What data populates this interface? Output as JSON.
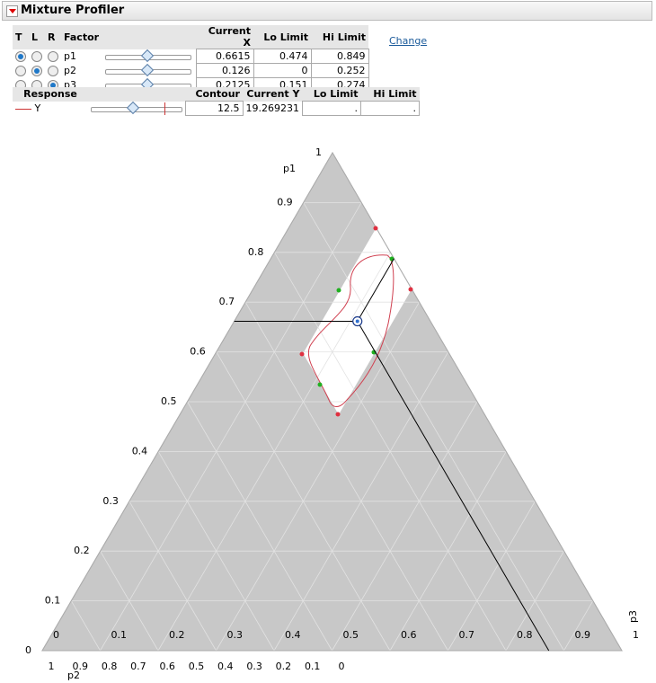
{
  "header": {
    "title": "Mixture Profiler"
  },
  "factors": {
    "columns": [
      "T",
      "L",
      "R",
      "Factor",
      "Current X",
      "Lo Limit",
      "Hi Limit"
    ],
    "rows": [
      {
        "name": "p1",
        "current": 0.6615,
        "lo": 0.474,
        "hi": 0.849
      },
      {
        "name": "p2",
        "current": 0.126,
        "lo": 0,
        "hi": 0.252
      },
      {
        "name": "p3",
        "current": 0.2125,
        "lo": 0.151,
        "hi": 0.274
      }
    ]
  },
  "change_link": "Change",
  "responses": {
    "columns": [
      "Response",
      "Contour",
      "Current Y",
      "Lo Limit",
      "Hi Limit"
    ],
    "rows": [
      {
        "name": "Y",
        "contour": 12.5,
        "current_y": 19.269231,
        "lo": ".",
        "hi": "."
      }
    ]
  },
  "ternary": {
    "p1_axis": {
      "label": "p1",
      "ticks": [
        0,
        0.1,
        0.2,
        0.3,
        0.4,
        0.5,
        0.6,
        0.7,
        0.8,
        0.9,
        1
      ]
    },
    "p2_axis": {
      "label": "p2",
      "ticks": [
        0,
        0.1,
        0.2,
        0.3,
        0.4,
        0.5,
        0.6,
        0.7,
        0.8,
        0.9,
        1
      ]
    },
    "p3_axis": {
      "label": "p3",
      "ticks": [
        0,
        0.1,
        0.2,
        0.3,
        0.4,
        0.5,
        0.6,
        0.7,
        0.8,
        0.9,
        1
      ]
    }
  }
}
